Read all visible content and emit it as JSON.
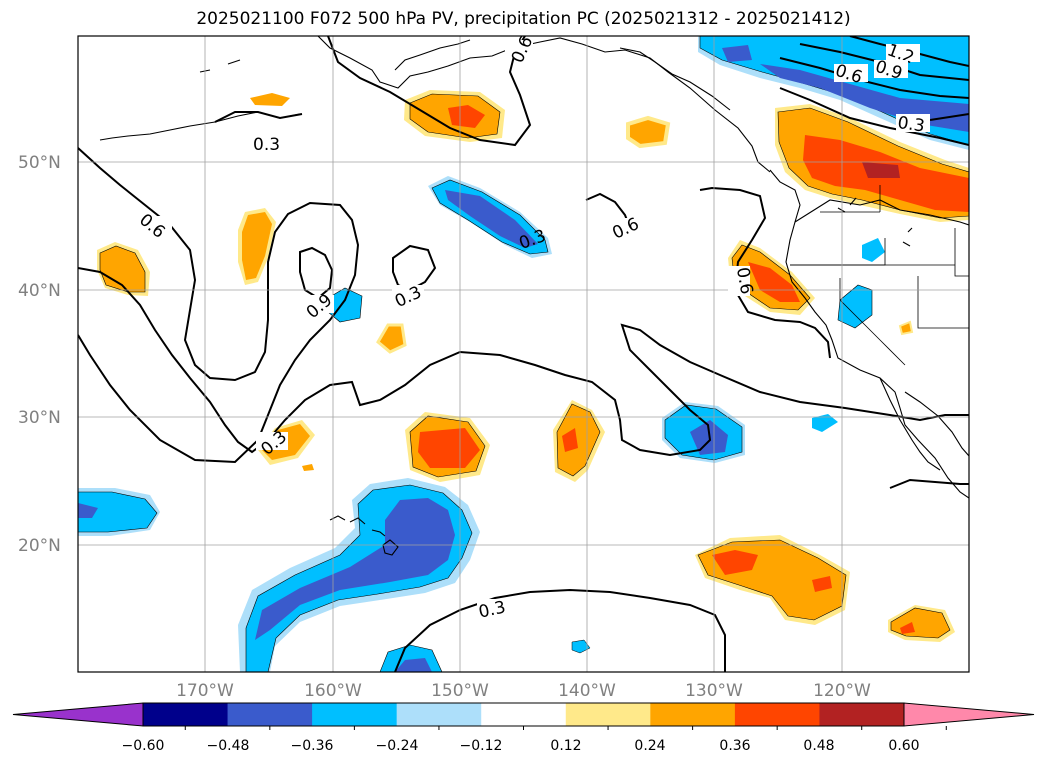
{
  "title": "2025021100 F072 500 hPa PV, precipitation PC (2025021312 - 2025021412)",
  "axes": {
    "lat_labels": [
      "50°N",
      "40°N",
      "30°N",
      "20°N"
    ],
    "lon_labels": [
      "170°W",
      "160°W",
      "150°W",
      "140°W",
      "130°W",
      "120°W"
    ]
  },
  "contour_labels": [
    "0.3",
    "0.6",
    "0.9",
    "1.2"
  ],
  "colorbar": {
    "ticks": [
      "−0.60",
      "−0.48",
      "−0.36",
      "−0.24",
      "−0.12",
      "0.12",
      "0.24",
      "0.36",
      "0.48",
      "0.60"
    ],
    "colors": [
      "#9932CC",
      "#00008B",
      "#3A5BCC",
      "#00BFFF",
      "#ADDFFA",
      "#FFFFFF",
      "#FFE98A",
      "#FFA500",
      "#FF4500",
      "#B22222",
      "#FF88AA"
    ]
  }
}
